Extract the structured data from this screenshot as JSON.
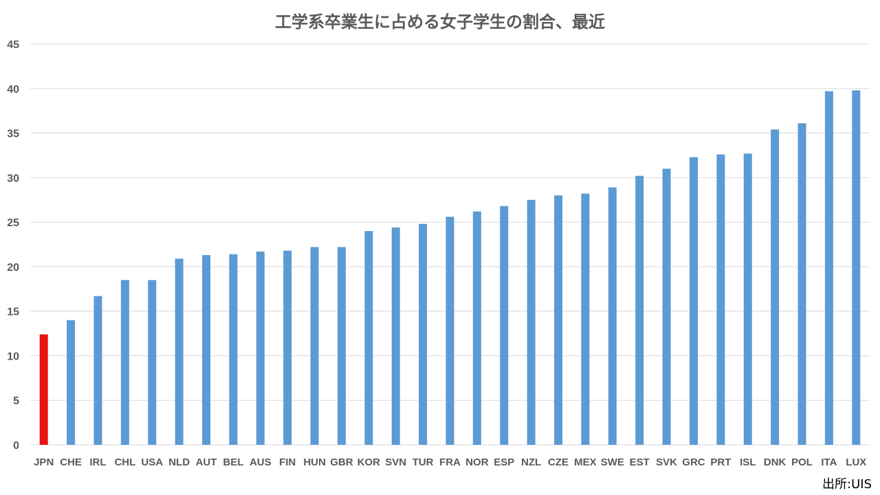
{
  "chart_data": {
    "type": "bar",
    "title": "工学系卒業生に占める女子学生の割合、最近",
    "categories": [
      "JPN",
      "CHE",
      "IRL",
      "CHL",
      "USA",
      "NLD",
      "AUT",
      "BEL",
      "AUS",
      "FIN",
      "HUN",
      "GBR",
      "KOR",
      "SVN",
      "TUR",
      "FRA",
      "NOR",
      "ESP",
      "NZL",
      "CZE",
      "MEX",
      "SWE",
      "EST",
      "SVK",
      "GRC",
      "PRT",
      "ISL",
      "DNK",
      "POL",
      "ITA",
      "LUX"
    ],
    "values": [
      12.4,
      14.0,
      16.7,
      18.5,
      18.5,
      20.9,
      21.3,
      21.4,
      21.7,
      21.8,
      22.2,
      22.2,
      24.0,
      24.4,
      24.8,
      25.6,
      26.2,
      26.8,
      27.5,
      28.0,
      28.2,
      28.9,
      30.2,
      31.0,
      32.3,
      32.6,
      32.7,
      35.4,
      36.1,
      39.7,
      39.8
    ],
    "highlight": "JPN",
    "ylim": [
      0,
      45
    ],
    "yticks": [
      0,
      5,
      10,
      15,
      20,
      25,
      30,
      35,
      40,
      45
    ],
    "grid": true,
    "colors": {
      "bar": "#5b9bd5",
      "highlight": "#e8130f",
      "grid": "#d9d9d9",
      "axis": "#d9d9d9",
      "label": "#595959"
    }
  },
  "source": "出所:UIS"
}
